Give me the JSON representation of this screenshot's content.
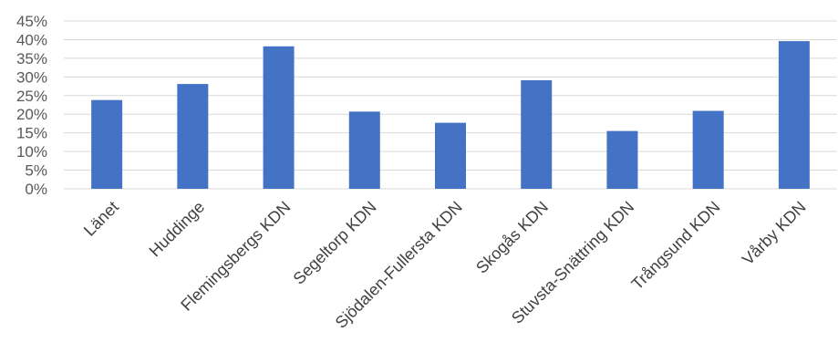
{
  "chart_data": {
    "type": "bar",
    "categories": [
      "Länet",
      "Huddinge",
      "Flemingsbergs KDN",
      "Segeltorp KDN",
      "Sjödalen-Fullersta KDN",
      "Skogås KDN",
      "Stuvsta-Snättring KDN",
      "Trångsund KDN",
      "Vårby KDN"
    ],
    "values": [
      0.238,
      0.281,
      0.382,
      0.207,
      0.177,
      0.291,
      0.155,
      0.209,
      0.396
    ],
    "yticks": [
      "0%",
      "5%",
      "10%",
      "15%",
      "20%",
      "25%",
      "30%",
      "35%",
      "40%",
      "45%"
    ],
    "ylim": [
      0,
      0.45
    ],
    "grid": true,
    "bar_color": "#4472c4",
    "grid_color": "#d9d9d9",
    "title": "",
    "xlabel": "",
    "ylabel": ""
  }
}
